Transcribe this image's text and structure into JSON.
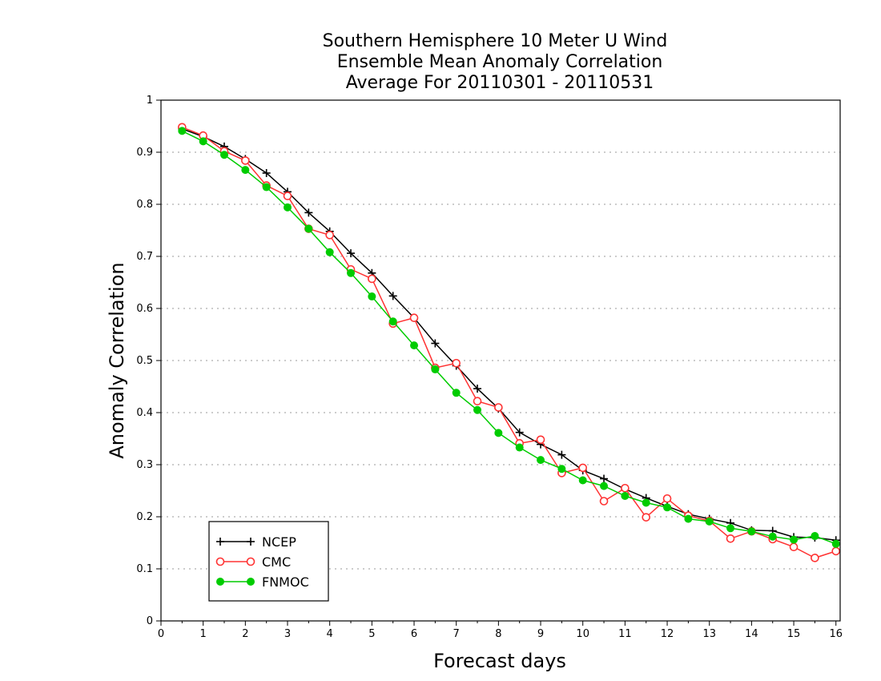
{
  "chart_data": {
    "type": "line",
    "title_lines": [
      "Southern Hemisphere 10 Meter U Wind",
      "Ensemble Mean Anomaly Correlation",
      "Average For 20110301 - 20110531"
    ],
    "xlabel": "Forecast days",
    "ylabel": "Anomaly Correlation",
    "xlim": [
      0,
      16.1
    ],
    "ylim": [
      0,
      1
    ],
    "x_ticks": [
      "0",
      "1",
      "2",
      "3",
      "4",
      "5",
      "6",
      "7",
      "8",
      "9",
      "10",
      "11",
      "12",
      "13",
      "14",
      "15",
      "16"
    ],
    "y_ticks": [
      "0",
      "0.1",
      "0.2",
      "0.3",
      "0.4",
      "0.5",
      "0.6",
      "0.7",
      "0.8",
      "0.9",
      "1"
    ],
    "grid": "horizontal dotted",
    "legend_position": "bottom-left",
    "x": [
      0.5,
      1,
      1.5,
      2,
      2.5,
      3,
      3.5,
      4,
      4.5,
      5,
      5.5,
      6,
      6.5,
      7,
      7.5,
      8,
      8.5,
      9,
      9.5,
      10,
      10.5,
      11,
      11.5,
      12,
      12.5,
      13,
      13.5,
      14,
      14.5,
      15,
      15.5,
      16
    ],
    "series": [
      {
        "name": "NCEP",
        "color": "#000000",
        "marker": "plus",
        "values": [
          0.945,
          0.93,
          0.911,
          0.887,
          0.86,
          0.824,
          0.784,
          0.748,
          0.706,
          0.668,
          0.624,
          0.582,
          0.533,
          0.49,
          0.446,
          0.408,
          0.362,
          0.339,
          0.319,
          0.289,
          0.273,
          0.253,
          0.236,
          0.22,
          0.205,
          0.196,
          0.188,
          0.174,
          0.173,
          0.161,
          0.16,
          0.155
        ]
      },
      {
        "name": "CMC",
        "color": "#ff3333",
        "marker": "open-circle",
        "values": [
          0.948,
          0.932,
          0.902,
          0.884,
          0.836,
          0.816,
          0.753,
          0.741,
          0.675,
          0.657,
          0.571,
          0.582,
          0.486,
          0.495,
          0.422,
          0.41,
          0.341,
          0.348,
          0.284,
          0.294,
          0.23,
          0.255,
          0.199,
          0.235,
          0.202,
          0.192,
          0.158,
          0.172,
          0.157,
          0.142,
          0.121,
          0.134
        ]
      },
      {
        "name": "FNMOC",
        "color": "#00cc00",
        "marker": "filled-circle",
        "values": [
          0.941,
          0.921,
          0.895,
          0.866,
          0.833,
          0.794,
          0.753,
          0.708,
          0.668,
          0.623,
          0.575,
          0.529,
          0.483,
          0.438,
          0.405,
          0.361,
          0.333,
          0.309,
          0.292,
          0.27,
          0.259,
          0.24,
          0.227,
          0.218,
          0.196,
          0.191,
          0.178,
          0.172,
          0.162,
          0.156,
          0.163,
          0.148
        ]
      }
    ]
  }
}
